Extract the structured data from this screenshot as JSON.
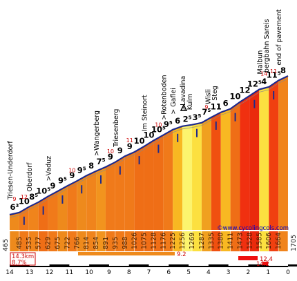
{
  "chart_data": {
    "type": "area",
    "title": "",
    "xlabel": "",
    "ylabel": "",
    "x_ticks": [
      "14",
      "13",
      "12",
      "11",
      "10",
      "9",
      "8",
      "7",
      "6",
      "5",
      "4",
      "3",
      "2",
      "1",
      "0"
    ],
    "x_range_km": [
      14.3,
      0
    ],
    "elevation_range_m": [
      465,
      1705
    ],
    "start_elevation": "465",
    "end_elevation": "1705",
    "elevations": [
      "485",
      "535",
      "577",
      "629",
      "675",
      "722",
      "766",
      "814",
      "854",
      "891",
      "935",
      "988",
      "1026",
      "1075",
      "1128",
      "1176",
      "1225",
      "1256",
      "1269",
      "1287",
      "1335",
      "1380",
      "1411",
      "1473",
      "1528",
      "1585",
      "1606",
      "1664"
    ],
    "segments": [
      {
        "grade": 6.3,
        "label": "63",
        "color": "#ee8a1c"
      },
      {
        "grade": 10,
        "label": "10",
        "color": "#f07a1a"
      },
      {
        "grade": 8.5,
        "label": "85",
        "color": "#f0841c"
      },
      {
        "grade": 10.5,
        "label": "105",
        "color": "#ef6e16"
      },
      {
        "grade": 9,
        "label": "9",
        "color": "#f07a1a"
      },
      {
        "grade": 9.5,
        "label": "95",
        "color": "#ee8a1c"
      },
      {
        "grade": 9,
        "label": "9",
        "color": "#f07a1a"
      },
      {
        "grade": 9.5,
        "label": "95",
        "color": "#ee8a1c"
      },
      {
        "grade": 8,
        "label": "8",
        "color": "#f0841c"
      },
      {
        "grade": 7.5,
        "label": "75",
        "color": "#f2941e"
      },
      {
        "grade": 9,
        "label": "9",
        "color": "#f07a1a"
      },
      {
        "grade": 9,
        "label": "9",
        "color": "#f07a1a"
      },
      {
        "grade": 9,
        "label": "9",
        "color": "#f07a1a"
      },
      {
        "grade": 10,
        "label": "10",
        "color": "#ef6e16"
      },
      {
        "grade": 10,
        "label": "10",
        "color": "#ef6e16"
      },
      {
        "grade": 10.5,
        "label": "105",
        "color": "#ef6e16"
      },
      {
        "grade": 9.5,
        "label": "95",
        "color": "#f07a1a"
      },
      {
        "grade": 6,
        "label": "6",
        "color": "#f8b822"
      },
      {
        "grade": 2.5,
        "label": "25",
        "color": "#fcf46e"
      },
      {
        "grade": 3.5,
        "label": "35",
        "color": "#fce040"
      },
      {
        "grade": 7.5,
        "label": "75",
        "color": "#f0a020"
      },
      {
        "grade": 11,
        "label": "11",
        "color": "#f05010"
      },
      {
        "grade": 6,
        "label": "6",
        "color": "#f8b822"
      },
      {
        "grade": 10,
        "label": "10",
        "color": "#ef6e16"
      },
      {
        "grade": 12,
        "label": "12",
        "color": "#f03010"
      },
      {
        "grade": 12.5,
        "label": "125",
        "color": "#ea2a0c"
      },
      {
        "grade": 4,
        "label": "4",
        "color": "#fce040"
      },
      {
        "grade": 11.5,
        "label": "115",
        "color": "#f04010"
      },
      {
        "grade": 8,
        "label": "8",
        "color": "#f0841c"
      }
    ],
    "max_grades": [
      {
        "label": "9"
      },
      {
        "label": "12"
      },
      {
        "label": "10"
      },
      {
        "label": "10"
      },
      {
        "label": "11"
      },
      {
        "label": "10"
      },
      {
        "label": "9"
      },
      {
        "label": "14"
      },
      {
        "label": "11"
      }
    ],
    "places": [
      {
        "label": "Triesen-Underdorf"
      },
      {
        "label": "Oberdorf"
      },
      {
        "label": ">Vaduz"
      },
      {
        "label": ">Wangerberg"
      },
      {
        "label": "Triesenberg"
      },
      {
        "label": "Im Steinort"
      },
      {
        "label": ">Rotenboden"
      },
      {
        "label": "> Gaflei"
      },
      {
        "label": ">Lavadina"
      },
      {
        "label": "Kulm"
      },
      {
        "label": "Wisli"
      },
      {
        "label": "Steg"
      },
      {
        "label": "Malbun"
      },
      {
        "label": "bergbahn Sareis"
      },
      {
        "label": "end of pavement"
      }
    ],
    "credit": "www.cycolingcols.com",
    "summary": {
      "distance": "14.3km",
      "avg_grade": "8.7%"
    },
    "bars": [
      {
        "label": "9.2"
      },
      {
        "label": "12.4"
      },
      {
        "label": "14.2"
      }
    ],
    "colors": {
      "outline": "#1e2a8c",
      "road_line": "#888888",
      "text_red": "#cc0000",
      "credit_blue": "#0000cc"
    }
  }
}
